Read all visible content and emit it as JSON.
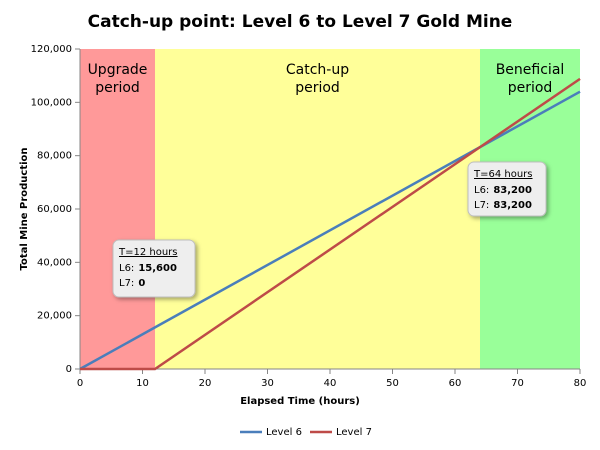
{
  "chart_data": {
    "type": "line",
    "title": "Catch-up point: Level 6 to Level 7 Gold Mine",
    "x_label": "Elapsed Time (hours)",
    "y_label": "Total Mine Production",
    "x": [
      0,
      12,
      64,
      80
    ],
    "series": [
      {
        "name": "Level 6",
        "color": "#4a7ebb",
        "values": [
          0,
          15600,
          83200,
          104000
        ]
      },
      {
        "name": "Level 7",
        "color": "#be4b48",
        "values": [
          0,
          0,
          83200,
          108800
        ]
      }
    ],
    "xlim": [
      0,
      80
    ],
    "xticks": [
      0,
      10,
      20,
      30,
      40,
      50,
      60,
      70,
      80
    ],
    "ylim": [
      0,
      120000
    ],
    "yticks": [
      0,
      {
        "value": 20000,
        "label": "20,000"
      },
      {
        "value": 40000,
        "label": "40,000"
      },
      {
        "value": 60000,
        "label": "60,000"
      },
      {
        "value": 80000,
        "label": "80,000"
      },
      {
        "value": 100000,
        "label": "100,000"
      },
      {
        "value": 120000,
        "label": "120,000"
      }
    ],
    "grid": false,
    "legend": "bottom",
    "regions": [
      {
        "start": 0,
        "end": 12,
        "color": "#ff9999",
        "label": [
          "Upgrade",
          "period"
        ]
      },
      {
        "start": 12,
        "end": 64,
        "color": "#ffff99",
        "label": [
          "Catch-up",
          "period"
        ]
      },
      {
        "start": 64,
        "end": 80,
        "color": "#99ff99",
        "label": [
          "Beneficial",
          "period"
        ]
      }
    ],
    "annotations": [
      {
        "title": "T=12 hours",
        "lines": [
          {
            "label": "L6:",
            "value": "15,600"
          },
          {
            "label": "L7:",
            "value": "0"
          }
        ]
      },
      {
        "title": "T=64 hours",
        "lines": [
          {
            "label": "L6:",
            "value": "83,200"
          },
          {
            "label": "L7:",
            "value": "83,200"
          }
        ]
      }
    ]
  }
}
